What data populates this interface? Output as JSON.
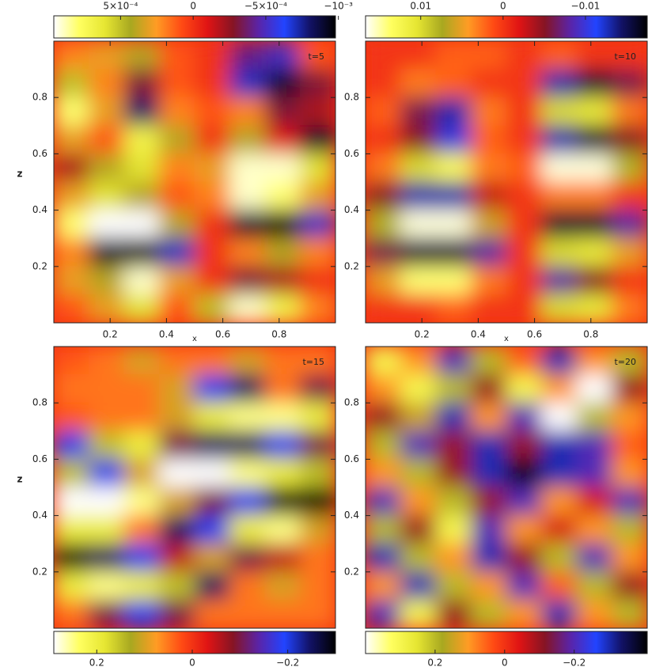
{
  "chart_data": [
    {
      "type": "heatmap",
      "title": "t=5",
      "xlabel": "x",
      "ylabel": "z",
      "xlim": [
        0,
        1
      ],
      "ylim": [
        0,
        1
      ],
      "xticks": [
        0.2,
        0.4,
        0.6,
        0.8
      ],
      "yticks": [
        0.2,
        0.4,
        0.6,
        0.8
      ],
      "clim": [
        0.00096,
        -0.00098
      ],
      "cticks": [
        {
          "value": 0.0005,
          "label": "5×10⁻⁴"
        },
        0,
        {
          "value": -0.0005,
          "label": "−5×10⁻⁴"
        },
        {
          "value": -0.001,
          "label": "−10⁻³"
        }
      ],
      "colormap": [
        "#ffffff",
        "#ffff60",
        "#e6e632",
        "#a8a820",
        "#ff9c24",
        "#ff4a14",
        "#e01414",
        "#861424",
        "#5a24a8",
        "#2244ff",
        "#121266",
        "#000000"
      ],
      "values": [
        [
          0.0002,
          0.0003,
          0.0004,
          0.0001,
          0,
          -0.0004,
          -0.0005,
          0.0001
        ],
        [
          0.0005,
          0.0002,
          -0.0003,
          0.0001,
          0,
          -0.0007,
          -0.0009,
          -0.0003
        ],
        [
          0.0008,
          0.0003,
          -0.0008,
          0.0002,
          0.0001,
          0.0002,
          -0.0003,
          -0.0002
        ],
        [
          0.0003,
          0.0001,
          0.0007,
          0.0004,
          0,
          0.0004,
          -0.0001,
          -0.0009
        ],
        [
          -0.0002,
          0.0004,
          0.0006,
          0.0002,
          0.0003,
          0.0009,
          0.0009,
          0.0006
        ],
        [
          0.0003,
          0.0006,
          0.0004,
          0.0001,
          0.0002,
          0.0009,
          0.0008,
          0.0003
        ],
        [
          0.0008,
          0.001,
          0.001,
          0.0004,
          0,
          -0.0009,
          -0.001,
          -0.0005
        ],
        [
          0.0002,
          -0.0009,
          -0.001,
          -0.0007,
          0,
          0.0002,
          0.0004,
          0.0002
        ],
        [
          0.0003,
          0.0004,
          0.0009,
          0.0003,
          0,
          -0.0003,
          -0.0002,
          0
        ],
        [
          0.0001,
          0.0003,
          0.0006,
          0.0001,
          0.0005,
          0.0009,
          0.0007,
          0.0002
        ]
      ]
    },
    {
      "type": "heatmap",
      "title": "t=10",
      "xlabel": "x",
      "xlim": [
        0,
        1
      ],
      "ylim": [
        0,
        1
      ],
      "xticks": [
        0.2,
        0.4,
        0.6,
        0.8
      ],
      "yticks": [
        0.2,
        0.4,
        0.6,
        0.8
      ],
      "clim": [
        0.0167,
        -0.0175
      ],
      "cticks": [
        0.01,
        0,
        {
          "value": -0.01,
          "label": "−0.01"
        }
      ],
      "colormap": [
        "#ffffff",
        "#ffff60",
        "#e6e632",
        "#a8a820",
        "#ff9c24",
        "#ff4a14",
        "#e01414",
        "#861424",
        "#5a24a8",
        "#2244ff",
        "#121266",
        "#000000"
      ],
      "values": [
        [
          0,
          0,
          0.002,
          0.002,
          0,
          0.002,
          0,
          0
        ],
        [
          0,
          0.003,
          0.002,
          0,
          0,
          -0.013,
          -0.016,
          -0.006
        ],
        [
          0.002,
          -0.006,
          -0.013,
          0.003,
          0,
          0.01,
          0.011,
          0.003
        ],
        [
          0,
          -0.005,
          -0.01,
          0.002,
          0,
          -0.013,
          -0.016,
          -0.005
        ],
        [
          0.003,
          0.01,
          0.013,
          0.003,
          0.002,
          0.016,
          0.016,
          0.008
        ],
        [
          -0.005,
          -0.013,
          -0.013,
          -0.003,
          0,
          0.003,
          0.003,
          0
        ],
        [
          0.008,
          0.016,
          0.016,
          0.006,
          0,
          -0.016,
          -0.016,
          -0.008
        ],
        [
          -0.006,
          -0.016,
          -0.016,
          -0.008,
          0,
          0.01,
          0.011,
          0.005
        ],
        [
          0.005,
          0.014,
          0.014,
          0.003,
          0,
          -0.008,
          -0.005,
          0
        ],
        [
          0,
          0,
          0.002,
          0,
          0,
          0.01,
          0.011,
          0.003
        ]
      ]
    },
    {
      "type": "heatmap",
      "title": "t=15",
      "ylabel": "z",
      "xlim": [
        0,
        1
      ],
      "ylim": [
        0,
        1
      ],
      "yticks": [
        0.2,
        0.4,
        0.6,
        0.8
      ],
      "clim": [
        0.29,
        -0.3
      ],
      "cticks": [
        0.2,
        0,
        {
          "value": -0.2,
          "label": "−0.2"
        }
      ],
      "colormap": [
        "#ffffff",
        "#ffff60",
        "#e6e632",
        "#a8a820",
        "#ff9c24",
        "#ff4a14",
        "#e01414",
        "#861424",
        "#5a24a8",
        "#2244ff",
        "#121266",
        "#000000"
      ],
      "values": [
        [
          0.03,
          0.05,
          0.1,
          0.05,
          0.05,
          0.1,
          0.05,
          0.05
        ],
        [
          0.05,
          0.05,
          0.05,
          0.1,
          -0.2,
          -0.25,
          0.05,
          -0.1
        ],
        [
          0.03,
          0.05,
          0.05,
          0.1,
          0.2,
          0.25,
          0.25,
          0.2
        ],
        [
          -0.2,
          0.15,
          0.2,
          -0.1,
          -0.25,
          -0.25,
          -0.2,
          -0.1
        ],
        [
          0.15,
          -0.2,
          0.1,
          0.3,
          0.3,
          0.25,
          0.2,
          0.15
        ],
        [
          0.3,
          0.3,
          0.25,
          0.1,
          -0.1,
          -0.2,
          -0.3,
          -0.3
        ],
        [
          0.2,
          0.2,
          0.05,
          -0.25,
          -0.2,
          0.2,
          0.25,
          0.1
        ],
        [
          -0.3,
          -0.25,
          -0.2,
          -0.05,
          0.1,
          -0.1,
          -0.05,
          0.05
        ],
        [
          0.2,
          0.25,
          0.2,
          0.15,
          -0.25,
          0.05,
          0.1,
          0.05
        ],
        [
          0.05,
          -0.1,
          -0.2,
          -0.1,
          0.05,
          0.05,
          0.05,
          0.05
        ]
      ]
    },
    {
      "type": "heatmap",
      "title": "t=20",
      "xlim": [
        0,
        1
      ],
      "ylim": [
        0,
        1
      ],
      "yticks": [
        0.2,
        0.4,
        0.6,
        0.8
      ],
      "clim": [
        0.4,
        -0.41
      ],
      "cticks": [
        0.2,
        0,
        {
          "value": -0.2,
          "label": "−0.2"
        }
      ],
      "colormap": [
        "#ffffff",
        "#ffff60",
        "#e6e632",
        "#a8a820",
        "#ff9c24",
        "#ff4a14",
        "#e01414",
        "#861424",
        "#5a24a8",
        "#2244ff",
        "#121266",
        "#000000"
      ],
      "values": [
        [
          0.3,
          0.1,
          -0.2,
          0.2,
          0.05,
          -0.3,
          0.1,
          0.2
        ],
        [
          0.1,
          0.3,
          0.2,
          -0.1,
          0.3,
          0.1,
          0.4,
          -0.1
        ],
        [
          -0.1,
          0.15,
          -0.3,
          0.1,
          -0.2,
          0.4,
          0.2,
          0.1
        ],
        [
          0.2,
          -0.2,
          -0.1,
          -0.3,
          -0.1,
          -0.3,
          -0.2,
          0.05
        ],
        [
          0.1,
          0.2,
          -0.1,
          -0.3,
          -0.4,
          -0.3,
          -0.2,
          0.1
        ],
        [
          -0.2,
          0.1,
          0.2,
          -0.1,
          -0.2,
          0.1,
          -0.05,
          -0.2
        ],
        [
          0.2,
          -0.1,
          0.3,
          -0.2,
          0.1,
          -0.05,
          0.1,
          0.2
        ],
        [
          -0.3,
          0.2,
          0.1,
          -0.3,
          -0.1,
          0.2,
          -0.2,
          0.1
        ],
        [
          0.1,
          -0.3,
          0.2,
          0.1,
          -0.2,
          0.05,
          0.2,
          -0.1
        ],
        [
          -0.2,
          0.3,
          -0.1,
          0.2,
          0.1,
          -0.3,
          0.1,
          0.2
        ]
      ]
    }
  ]
}
